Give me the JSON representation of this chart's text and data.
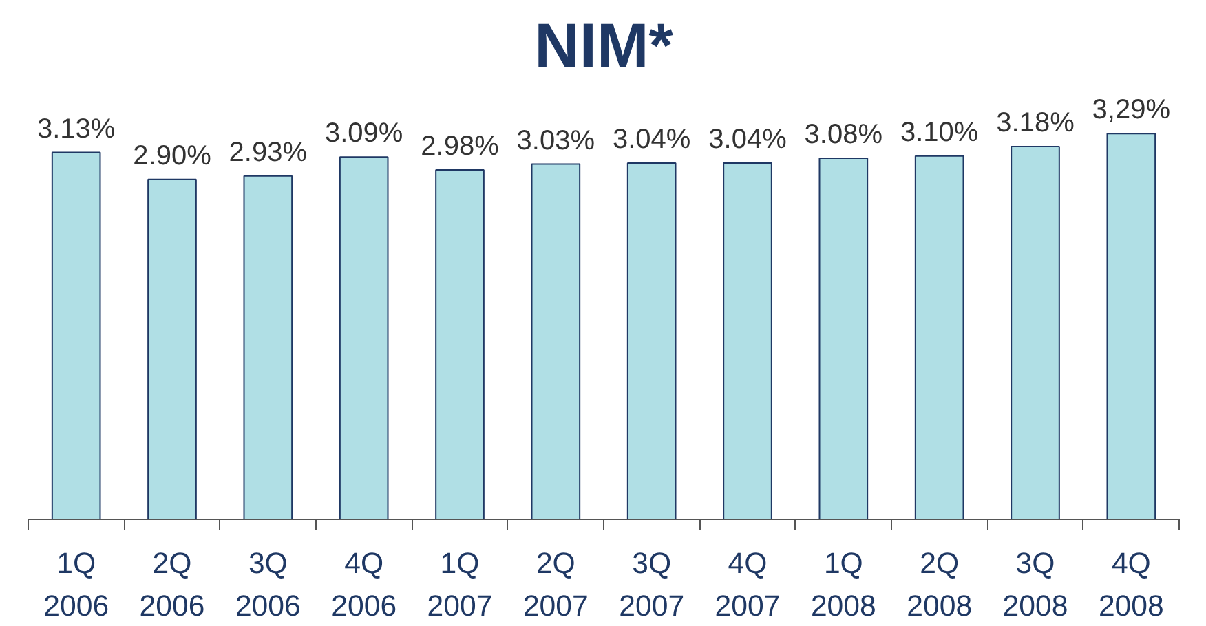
{
  "chart_data": {
    "type": "bar",
    "title": "NIM*",
    "categories": [
      "1Q\n2006",
      "2Q\n2006",
      "3Q\n2006",
      "4Q\n2006",
      "1Q\n2007",
      "2Q\n2007",
      "3Q\n2007",
      "4Q\n2007",
      "1Q\n2008",
      "2Q\n2008",
      "3Q\n2008",
      "4Q\n2008"
    ],
    "values": [
      3.13,
      2.9,
      2.93,
      3.09,
      2.98,
      3.03,
      3.04,
      3.04,
      3.08,
      3.1,
      3.18,
      3.29
    ],
    "value_labels": [
      "3.13%",
      "2.90%",
      "2.93%",
      "3.09%",
      "2.98%",
      "3.03%",
      "3.04%",
      "3.04%",
      "3.08%",
      "3.10%",
      "3.18%",
      "3,29%"
    ],
    "color": "#b0dfe5",
    "tick_labels": "x",
    "grid": false
  }
}
